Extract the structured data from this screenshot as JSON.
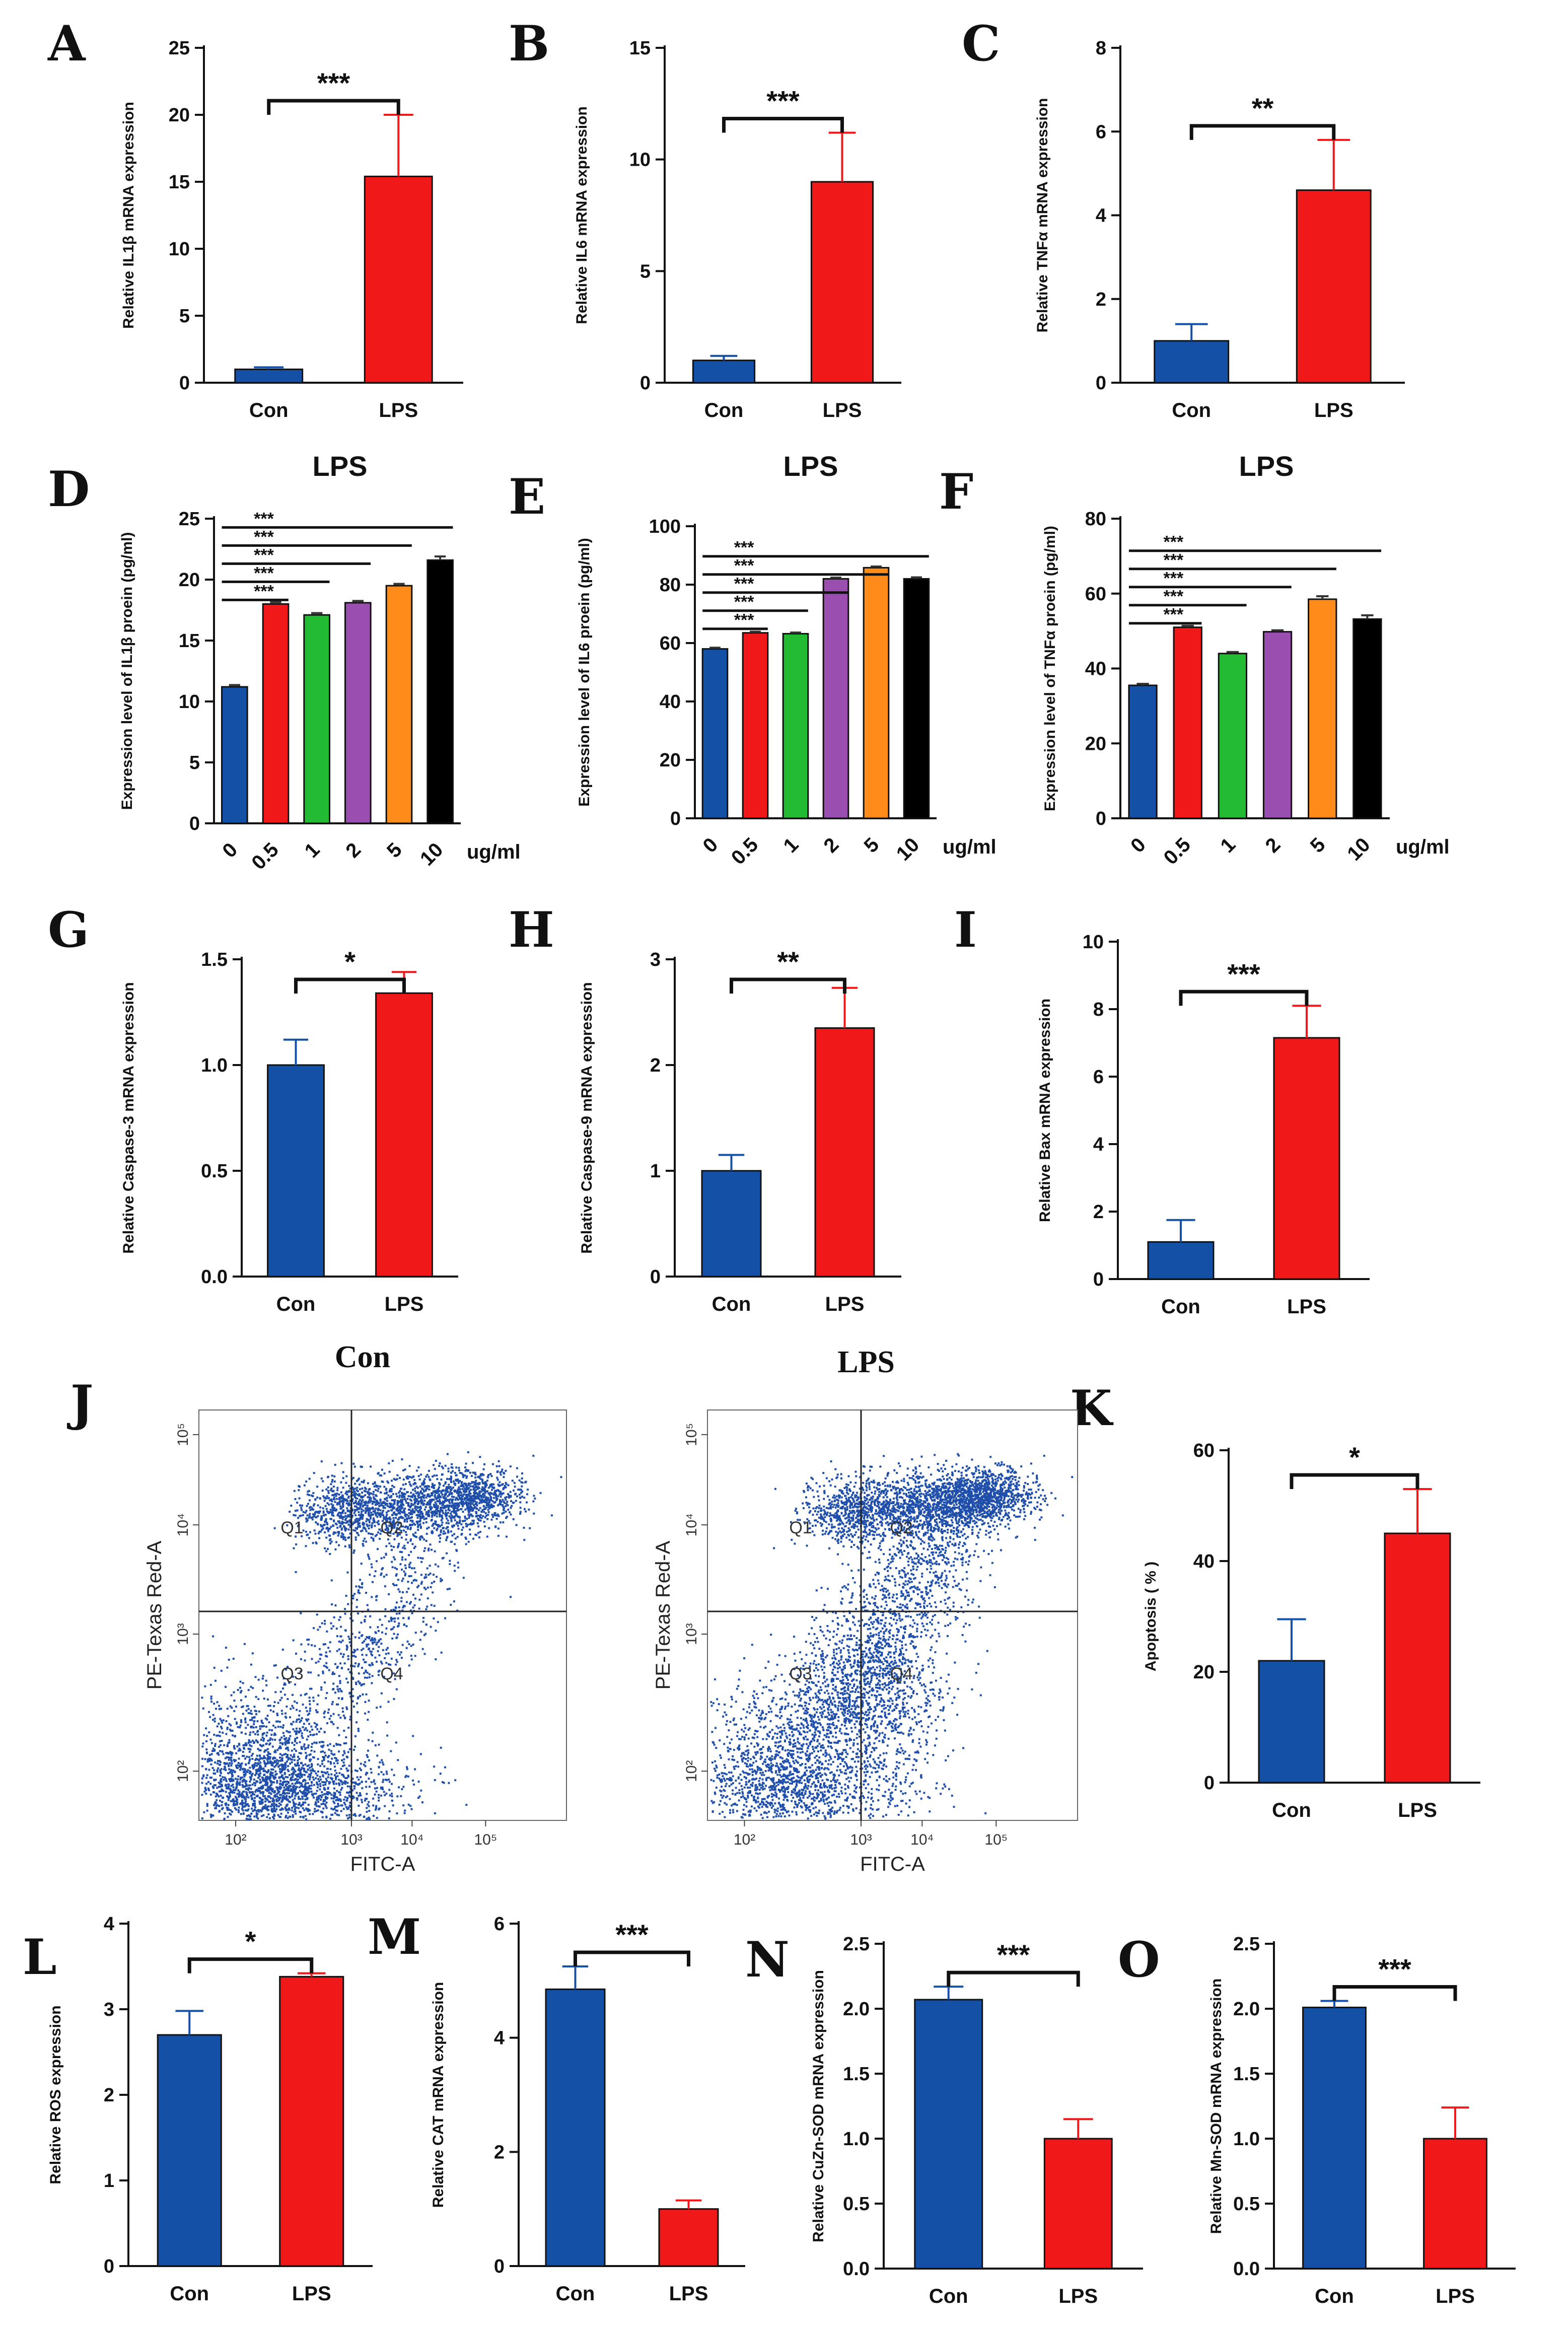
{
  "colors": {
    "blue": "#1450a6",
    "red": "#f01818",
    "green": "#22bb33",
    "purple": "#9a4fb0",
    "orange": "#ff8c1a",
    "black": "#000000",
    "flow_dot": "#1f4faa"
  },
  "chart_data": [
    {
      "id": "A",
      "letter": "A",
      "type": "bar",
      "categories": [
        "Con",
        "LPS"
      ],
      "values": [
        1.0,
        15.4
      ],
      "errors": [
        0.15,
        4.6
      ],
      "ylabel": "Relative IL1β mRNA expression",
      "ylim": [
        0,
        25
      ],
      "yticks": [
        "0",
        "5",
        "10",
        "15",
        "20",
        "25"
      ],
      "significance": [
        {
          "from": 0,
          "to": 1,
          "label": "***"
        }
      ]
    },
    {
      "id": "B",
      "letter": "B",
      "type": "bar",
      "categories": [
        "Con",
        "LPS"
      ],
      "values": [
        1.0,
        9.0
      ],
      "errors": [
        0.2,
        2.2
      ],
      "ylabel": "Relative IL6 mRNA expression",
      "ylim": [
        0,
        15
      ],
      "yticks": [
        "0",
        "5",
        "10",
        "15"
      ],
      "significance": [
        {
          "from": 0,
          "to": 1,
          "label": "***"
        }
      ]
    },
    {
      "id": "C",
      "letter": "C",
      "type": "bar",
      "categories": [
        "Con",
        "LPS"
      ],
      "values": [
        1.0,
        4.6
      ],
      "errors": [
        0.4,
        1.2
      ],
      "ylabel": "Relative TNFα mRNA expression",
      "ylim": [
        0,
        8
      ],
      "yticks": [
        "0",
        "2",
        "4",
        "6",
        "8"
      ],
      "significance": [
        {
          "from": 0,
          "to": 1,
          "label": "**"
        }
      ]
    },
    {
      "id": "D",
      "letter": "D",
      "type": "bar",
      "title": "LPS",
      "categories": [
        "0",
        "0.5",
        "1",
        "2",
        "5",
        "10"
      ],
      "unit_label": "ug/ml",
      "values": [
        11.2,
        18.0,
        17.1,
        18.1,
        19.5,
        21.6
      ],
      "errors": [
        0.15,
        0.15,
        0.15,
        0.15,
        0.15,
        0.3
      ],
      "ylabel": "Expression level of IL1β proein (pg/ml)",
      "ylim": [
        0,
        25
      ],
      "yticks": [
        "0",
        "5",
        "10",
        "15",
        "20",
        "25"
      ],
      "significance": [
        {
          "from": 0,
          "to": 1,
          "label": "***"
        },
        {
          "from": 0,
          "to": 2,
          "label": "***"
        },
        {
          "from": 0,
          "to": 3,
          "label": "***"
        },
        {
          "from": 0,
          "to": 4,
          "label": "***"
        },
        {
          "from": 0,
          "to": 5,
          "label": "***"
        }
      ]
    },
    {
      "id": "E",
      "letter": "E",
      "type": "bar",
      "title": "LPS",
      "categories": [
        "0",
        "0.5",
        "1",
        "2",
        "5",
        "10"
      ],
      "unit_label": "ug/ml",
      "values": [
        58.0,
        63.5,
        63.2,
        82.0,
        85.8,
        82.0
      ],
      "errors": [
        0.4,
        0.4,
        0.4,
        0.4,
        0.4,
        0.5
      ],
      "ylabel": "Expression level of IL6 proein (pg/ml)",
      "ylim": [
        0,
        100
      ],
      "yticks": [
        "0",
        "20",
        "40",
        "60",
        "80",
        "100"
      ],
      "significance": [
        {
          "from": 0,
          "to": 1,
          "label": "***"
        },
        {
          "from": 0,
          "to": 2,
          "label": "***"
        },
        {
          "from": 0,
          "to": 3,
          "label": "***"
        },
        {
          "from": 0,
          "to": 4,
          "label": "***"
        },
        {
          "from": 0,
          "to": 5,
          "label": "***"
        }
      ]
    },
    {
      "id": "F",
      "letter": "F",
      "type": "bar",
      "title": "LPS",
      "categories": [
        "0",
        "0.5",
        "1",
        "2",
        "5",
        "10"
      ],
      "unit_label": "ug/ml",
      "values": [
        35.5,
        51.0,
        44.0,
        49.8,
        58.5,
        53.2
      ],
      "errors": [
        0.4,
        0.4,
        0.4,
        0.4,
        0.8,
        1.0
      ],
      "ylabel": "Expression level of TNFα proein (pg/ml)",
      "ylim": [
        0,
        80
      ],
      "yticks": [
        "0",
        "20",
        "40",
        "60",
        "80"
      ],
      "significance": [
        {
          "from": 0,
          "to": 1,
          "label": "***"
        },
        {
          "from": 0,
          "to": 2,
          "label": "***"
        },
        {
          "from": 0,
          "to": 3,
          "label": "***"
        },
        {
          "from": 0,
          "to": 4,
          "label": "***"
        },
        {
          "from": 0,
          "to": 5,
          "label": "***"
        }
      ]
    },
    {
      "id": "G",
      "letter": "G",
      "type": "bar",
      "categories": [
        "Con",
        "LPS"
      ],
      "values": [
        1.0,
        1.34
      ],
      "errors": [
        0.12,
        0.1
      ],
      "ylabel": "Relative Caspase-3 mRNA expression",
      "ylim": [
        0,
        1.5
      ],
      "yticks": [
        "0.0",
        "0.5",
        "1.0",
        "1.5"
      ],
      "significance": [
        {
          "from": 0,
          "to": 1,
          "label": "*"
        }
      ]
    },
    {
      "id": "H",
      "letter": "H",
      "type": "bar",
      "categories": [
        "Con",
        "LPS"
      ],
      "values": [
        1.0,
        2.35
      ],
      "errors": [
        0.15,
        0.38
      ],
      "ylabel": "Relative Caspase-9 mRNA expression",
      "ylim": [
        0,
        3
      ],
      "yticks": [
        "0",
        "1",
        "2",
        "3"
      ],
      "significance": [
        {
          "from": 0,
          "to": 1,
          "label": "**"
        }
      ]
    },
    {
      "id": "I",
      "letter": "I",
      "type": "bar",
      "categories": [
        "Con",
        "LPS"
      ],
      "values": [
        1.1,
        7.15
      ],
      "errors": [
        0.65,
        0.95
      ],
      "ylabel": "Relative Bax mRNA expression",
      "ylim": [
        0,
        10
      ],
      "yticks": [
        "0",
        "2",
        "4",
        "6",
        "8",
        "10"
      ],
      "significance": [
        {
          "from": 0,
          "to": 1,
          "label": "***"
        }
      ]
    },
    {
      "id": "K",
      "letter": "K",
      "type": "bar",
      "categories": [
        "Con",
        "LPS"
      ],
      "values": [
        22.0,
        45.0
      ],
      "errors": [
        7.5,
        8.0
      ],
      "ylabel": "Apoptosis ( % )",
      "ylim": [
        0,
        60
      ],
      "yticks": [
        "0",
        "20",
        "40",
        "60"
      ],
      "significance": [
        {
          "from": 0,
          "to": 1,
          "label": "*"
        }
      ]
    },
    {
      "id": "L",
      "letter": "L",
      "type": "bar",
      "categories": [
        "Con",
        "LPS"
      ],
      "values": [
        2.7,
        3.38
      ],
      "errors": [
        0.28,
        0.04
      ],
      "ylabel": "Relative ROS expression",
      "ylim": [
        0,
        4
      ],
      "yticks": [
        "0",
        "1",
        "2",
        "3",
        "4"
      ],
      "significance": [
        {
          "from": 0,
          "to": 1,
          "label": "*"
        }
      ]
    },
    {
      "id": "M",
      "letter": "M",
      "type": "bar",
      "categories": [
        "Con",
        "LPS"
      ],
      "values": [
        4.85,
        1.0
      ],
      "errors": [
        0.4,
        0.15
      ],
      "ylabel": "Relative CAT mRNA expression",
      "ylim": [
        0,
        6
      ],
      "yticks": [
        "0",
        "2",
        "4",
        "6"
      ],
      "significance": [
        {
          "from": 0,
          "to": 1,
          "label": "***"
        }
      ]
    },
    {
      "id": "N",
      "letter": "N",
      "type": "bar",
      "categories": [
        "Con",
        "LPS"
      ],
      "values": [
        2.07,
        1.0
      ],
      "errors": [
        0.1,
        0.15
      ],
      "ylabel": "Relative CuZn-SOD mRNA expression",
      "ylim": [
        0,
        2.5
      ],
      "yticks": [
        "0.0",
        "0.5",
        "1.0",
        "1.5",
        "2.0",
        "2.5"
      ],
      "significance": [
        {
          "from": 0,
          "to": 1,
          "label": "***"
        }
      ]
    },
    {
      "id": "O",
      "letter": "O",
      "type": "bar",
      "categories": [
        "Con",
        "LPS"
      ],
      "values": [
        2.01,
        1.0
      ],
      "errors": [
        0.05,
        0.24
      ],
      "ylabel": "Relative Mn-SOD mRNA expression",
      "ylim": [
        0,
        2.5
      ],
      "yticks": [
        "0.0",
        "0.5",
        "1.0",
        "1.5",
        "2.0",
        "2.5"
      ],
      "significance": [
        {
          "from": 0,
          "to": 1,
          "label": "***"
        }
      ]
    }
  ],
  "flow_panel": {
    "letter": "J",
    "plots": [
      {
        "title": "Con",
        "xlabel": "FITC-A",
        "ylabel": "PE-Texas Red-A",
        "quadrants": [
          "Q1",
          "Q2",
          "Q3",
          "Q4"
        ],
        "xticks": [
          "10²",
          "10³",
          "10⁴",
          "10⁵"
        ],
        "yticks": [
          "10²",
          "10³",
          "10⁴",
          "10⁵"
        ]
      },
      {
        "title": "LPS",
        "xlabel": "FITC-A",
        "ylabel": "PE-Texas Red-A",
        "quadrants": [
          "Q1",
          "Q2",
          "Q3",
          "Q4"
        ],
        "xticks": [
          "10²",
          "10³",
          "10⁴",
          "10⁵"
        ],
        "yticks": [
          "10²",
          "10³",
          "10⁴",
          "10⁵"
        ]
      }
    ]
  }
}
